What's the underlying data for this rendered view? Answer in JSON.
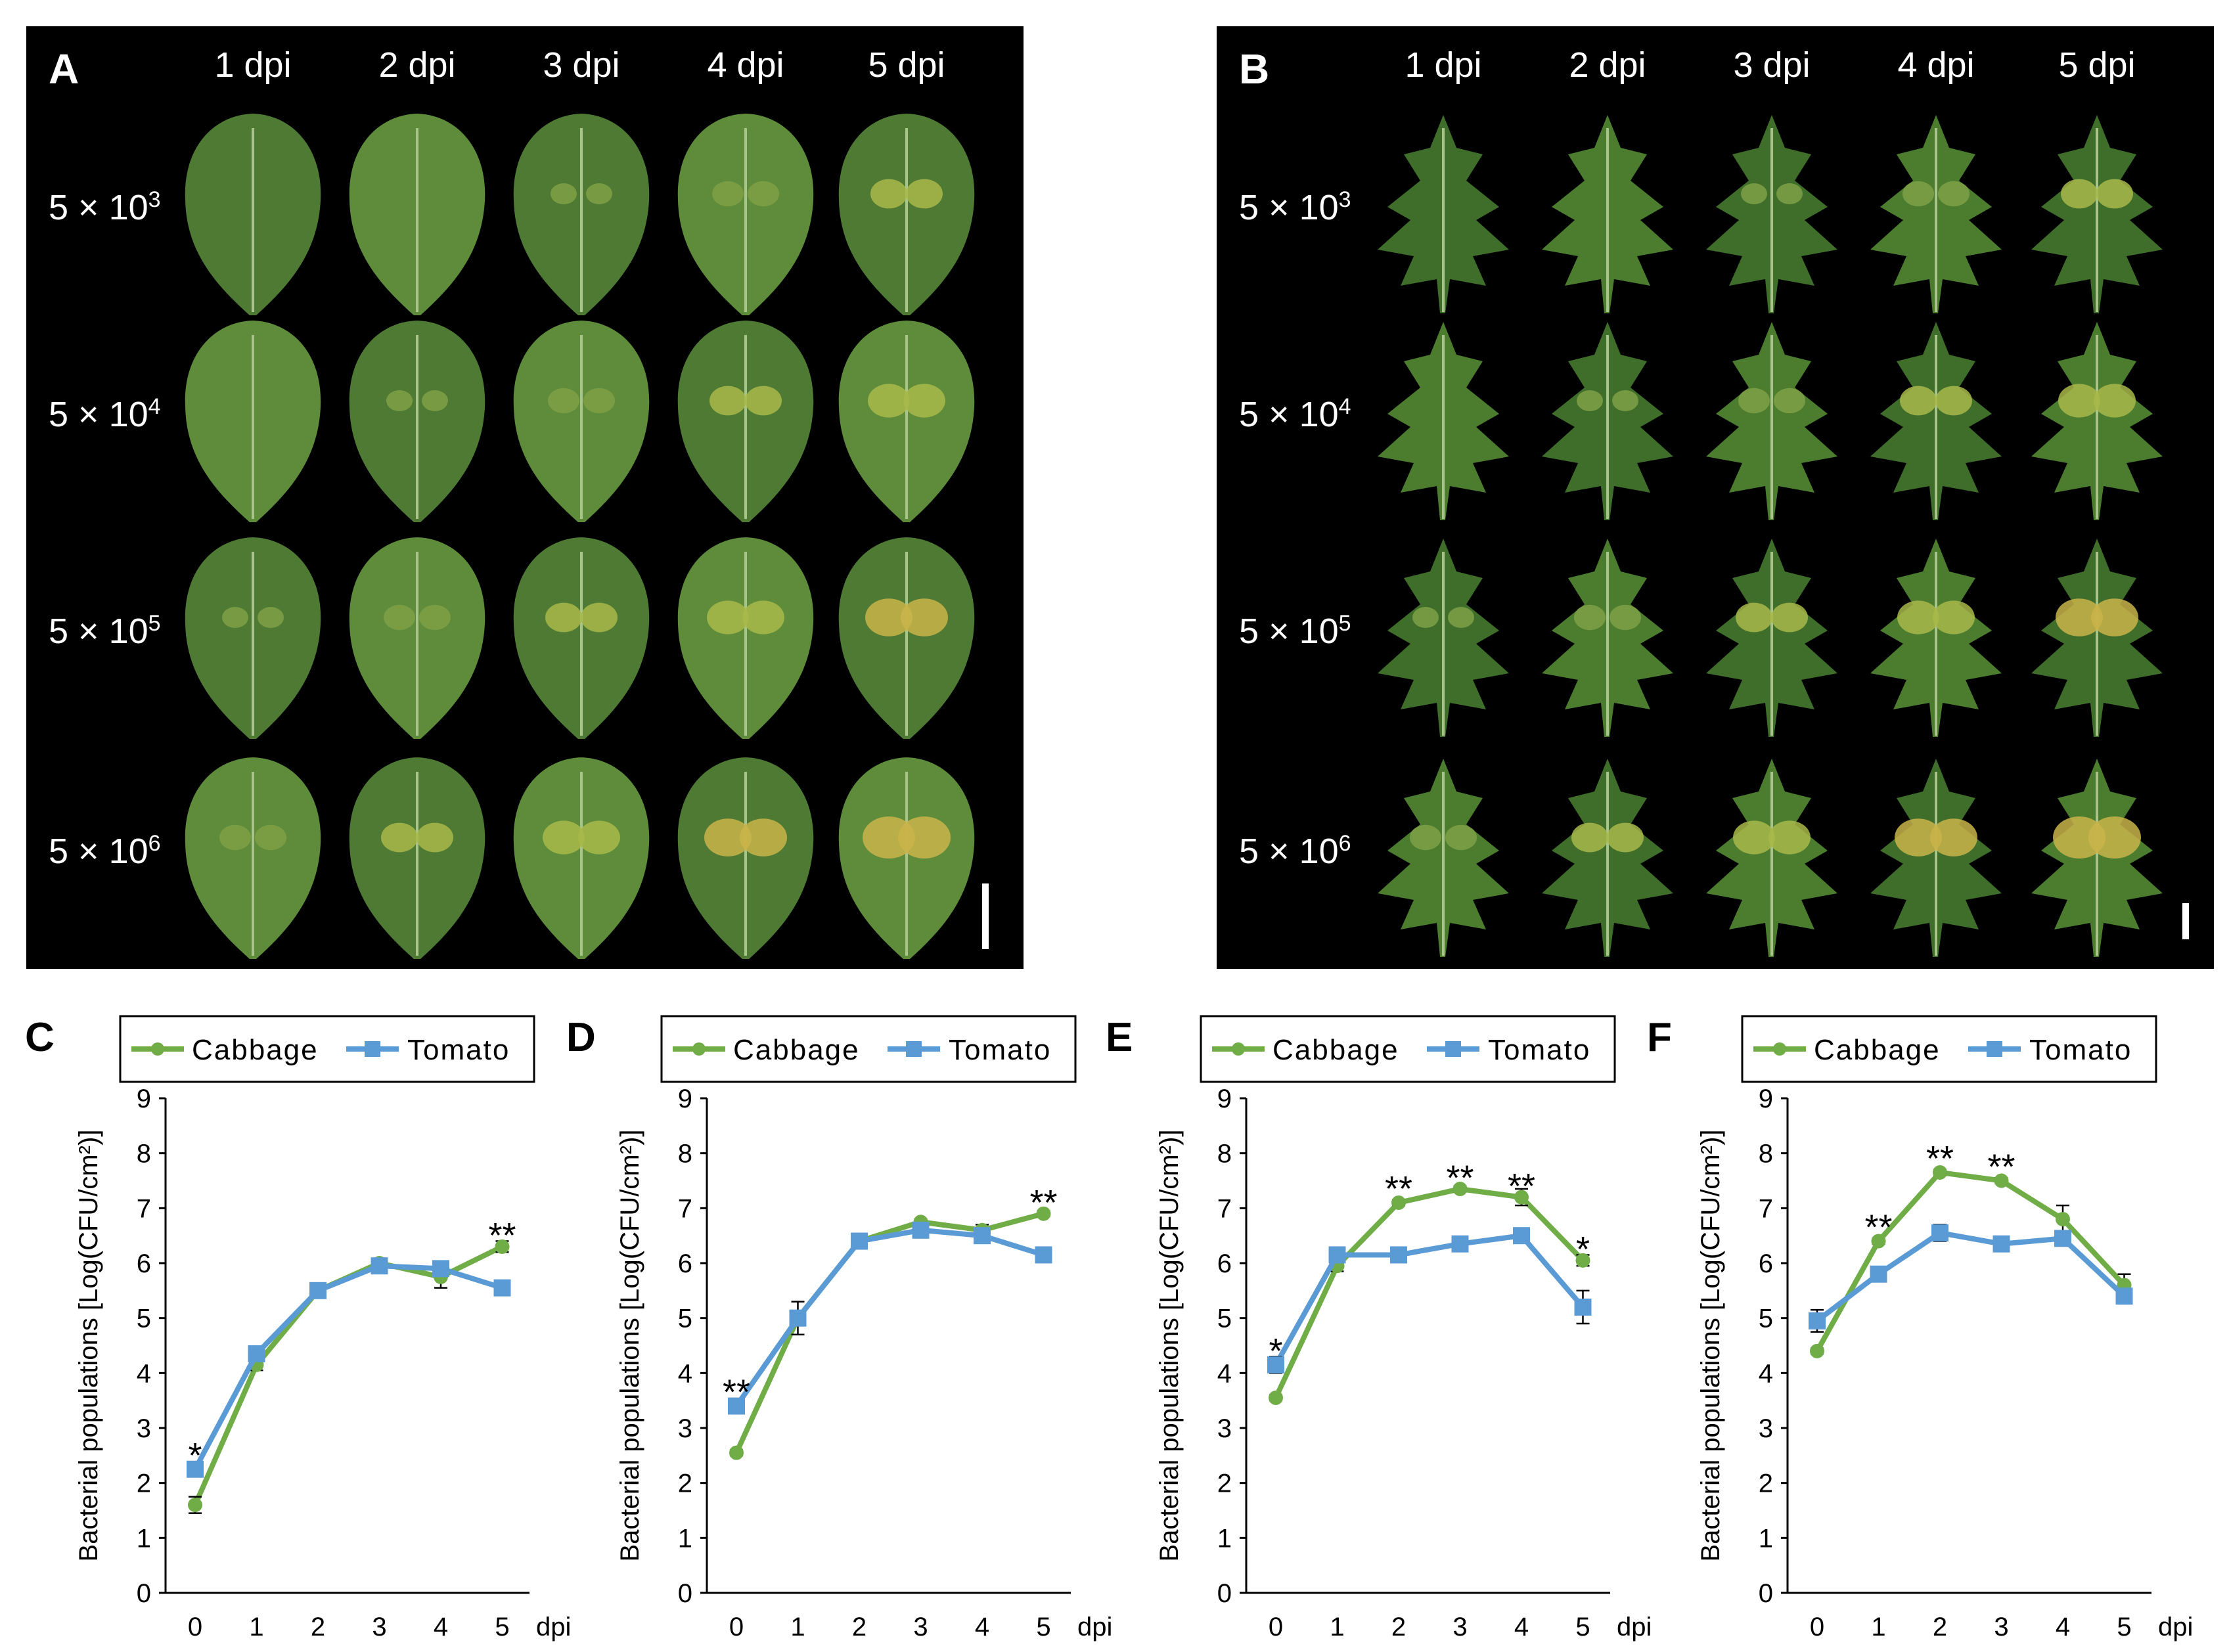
{
  "panels": {
    "A": {
      "label": "A",
      "cols": [
        "1 dpi",
        "2 dpi",
        "3 dpi",
        "4 dpi",
        "5 dpi"
      ],
      "rows": [
        {
          "base": "5 × 10",
          "exp": "3"
        },
        {
          "base": "5 × 10",
          "exp": "4"
        },
        {
          "base": "5 × 10",
          "exp": "5"
        },
        {
          "base": "5 × 10",
          "exp": "6"
        }
      ],
      "leaf": "cabbage"
    },
    "B": {
      "label": "B",
      "cols": [
        "1 dpi",
        "2 dpi",
        "3 dpi",
        "4 dpi",
        "5 dpi"
      ],
      "rows": [
        {
          "base": "5 × 10",
          "exp": "3"
        },
        {
          "base": "5 × 10",
          "exp": "4"
        },
        {
          "base": "5 × 10",
          "exp": "5"
        },
        {
          "base": "5 × 10",
          "exp": "6"
        }
      ],
      "leaf": "tomato"
    }
  },
  "colors": {
    "cabbage": "#70ad47",
    "tomato": "#5b9bd5",
    "photo_bg": "#000000"
  },
  "chart_data": [
    {
      "type": "line",
      "panel": "C",
      "x": [
        0,
        1,
        2,
        3,
        4,
        5
      ],
      "xlabel": "dpi",
      "ylabel": "Bacterial populations [Log(CFU/cm²)]",
      "ylim": [
        0,
        9
      ],
      "yticks": [
        0,
        1,
        2,
        3,
        4,
        5,
        6,
        7,
        8,
        9
      ],
      "grid": false,
      "legend": "top",
      "series": [
        {
          "name": "Cabbage",
          "values": [
            1.6,
            4.15,
            5.5,
            6.0,
            5.75,
            6.3
          ],
          "errors": [
            0.15,
            0.1,
            0.05,
            0.05,
            0.2,
            0.1
          ]
        },
        {
          "name": "Tomato",
          "values": [
            2.25,
            4.35,
            5.5,
            5.95,
            5.9,
            5.55
          ],
          "errors": [
            0.1,
            0.05,
            0.05,
            0.05,
            0.1,
            0.05
          ]
        }
      ],
      "annotations": [
        {
          "x": 0,
          "y": 2.5,
          "text": "*"
        },
        {
          "x": 5,
          "y": 6.5,
          "text": "**"
        }
      ]
    },
    {
      "type": "line",
      "panel": "D",
      "x": [
        0,
        1,
        2,
        3,
        4,
        5
      ],
      "xlabel": "dpi",
      "ylabel": "Bacterial populations [Log(CFU/cm²)]",
      "ylim": [
        0,
        9
      ],
      "yticks": [
        0,
        1,
        2,
        3,
        4,
        5,
        6,
        7,
        8,
        9
      ],
      "grid": false,
      "legend": "top",
      "series": [
        {
          "name": "Cabbage",
          "values": [
            2.55,
            5.0,
            6.4,
            6.75,
            6.6,
            6.9
          ],
          "errors": [
            0.05,
            0.1,
            0.05,
            0.05,
            0.1,
            0.05
          ]
        },
        {
          "name": "Tomato",
          "values": [
            3.4,
            5.0,
            6.4,
            6.6,
            6.5,
            6.15
          ],
          "errors": [
            0.05,
            0.3,
            0.05,
            0.05,
            0.1,
            0.05
          ]
        }
      ],
      "annotations": [
        {
          "x": 0,
          "y": 3.65,
          "text": "**"
        },
        {
          "x": 5,
          "y": 7.1,
          "text": "**"
        }
      ]
    },
    {
      "type": "line",
      "panel": "E",
      "x": [
        0,
        1,
        2,
        3,
        4,
        5
      ],
      "xlabel": "dpi",
      "ylabel": "Bacterial populations [Log(CFU/cm²)]",
      "ylim": [
        0,
        9
      ],
      "yticks": [
        0,
        1,
        2,
        3,
        4,
        5,
        6,
        7,
        8,
        9
      ],
      "grid": false,
      "legend": "top",
      "series": [
        {
          "name": "Cabbage",
          "values": [
            3.55,
            5.95,
            7.1,
            7.35,
            7.2,
            6.05
          ],
          "errors": [
            0.05,
            0.1,
            0.05,
            0.05,
            0.15,
            0.1
          ]
        },
        {
          "name": "Tomato",
          "values": [
            4.15,
            6.15,
            6.15,
            6.35,
            6.5,
            5.2
          ],
          "errors": [
            0.15,
            0.05,
            0.05,
            0.05,
            0.05,
            0.3
          ]
        }
      ],
      "annotations": [
        {
          "x": 0,
          "y": 4.4,
          "text": "*"
        },
        {
          "x": 2,
          "y": 7.35,
          "text": "**"
        },
        {
          "x": 3,
          "y": 7.55,
          "text": "**"
        },
        {
          "x": 4,
          "y": 7.4,
          "text": "**"
        },
        {
          "x": 5,
          "y": 6.25,
          "text": "*"
        }
      ]
    },
    {
      "type": "line",
      "panel": "F",
      "x": [
        0,
        1,
        2,
        3,
        4,
        5
      ],
      "xlabel": "dpi",
      "ylabel": "Bacterial populations [Log(CFU/cm²)]",
      "ylim": [
        0,
        9
      ],
      "yticks": [
        0,
        1,
        2,
        3,
        4,
        5,
        6,
        7,
        8,
        9
      ],
      "grid": false,
      "legend": "top",
      "series": [
        {
          "name": "Cabbage",
          "values": [
            4.4,
            6.4,
            7.65,
            7.5,
            6.8,
            5.6
          ],
          "errors": [
            0.05,
            0.05,
            0.05,
            0.05,
            0.25,
            0.2
          ]
        },
        {
          "name": "Tomato",
          "values": [
            4.95,
            5.8,
            6.55,
            6.35,
            6.45,
            5.4
          ],
          "errors": [
            0.2,
            0.05,
            0.15,
            0.05,
            0.1,
            0.1
          ]
        }
      ],
      "annotations": [
        {
          "x": 1,
          "y": 6.65,
          "text": "**"
        },
        {
          "x": 2,
          "y": 7.9,
          "text": "**"
        },
        {
          "x": 3,
          "y": 7.75,
          "text": "**"
        }
      ]
    }
  ]
}
